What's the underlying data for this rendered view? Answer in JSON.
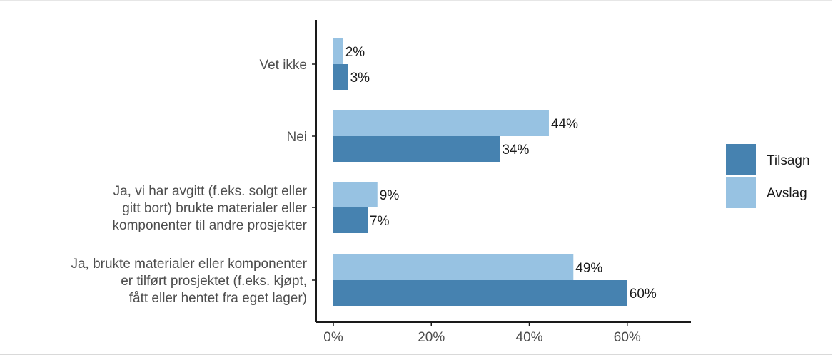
{
  "chart_data": {
    "type": "bar",
    "orientation": "horizontal",
    "categories": [
      "Vet ikke",
      "Nei",
      "Ja, vi har avgitt (f.eks. solgt eller gitt bort) brukte materialer eller komponenter til andre prosjekter",
      "Ja, brukte materialer eller komponenter er tilført prosjektet (f.eks. kjøpt, fått eller hentet fra eget lager)"
    ],
    "category_lines": [
      [
        "Vet ikke"
      ],
      [
        "Nei"
      ],
      [
        "Ja, vi har avgitt (f.eks. solgt eller",
        "gitt bort) brukte materialer eller",
        "komponenter til andre prosjekter"
      ],
      [
        "Ja, brukte materialer eller komponenter",
        "er tilført prosjektet (f.eks. kjøpt,",
        "fått eller hentet fra eget lager)"
      ]
    ],
    "series": [
      {
        "name": "Avslag",
        "color": "#97c2e2",
        "values": [
          2,
          44,
          9,
          49
        ],
        "labels": [
          "2%",
          "44%",
          "9%",
          "49%"
        ]
      },
      {
        "name": "Tilsagn",
        "color": "#4682b0",
        "values": [
          3,
          34,
          7,
          60
        ],
        "labels": [
          "3%",
          "34%",
          "7%",
          "60%"
        ]
      }
    ],
    "legend": {
      "placement": "right",
      "entries": [
        {
          "name": "Tilsagn",
          "color": "#4682b0"
        },
        {
          "name": "Avslag",
          "color": "#97c2e2"
        }
      ]
    },
    "xlim": [
      0,
      73
    ],
    "xticks": [
      0,
      20,
      40,
      60
    ],
    "xtick_labels": [
      "0%",
      "20%",
      "40%",
      "60%"
    ],
    "grid": false,
    "title": "",
    "xlabel": "",
    "ylabel": ""
  }
}
